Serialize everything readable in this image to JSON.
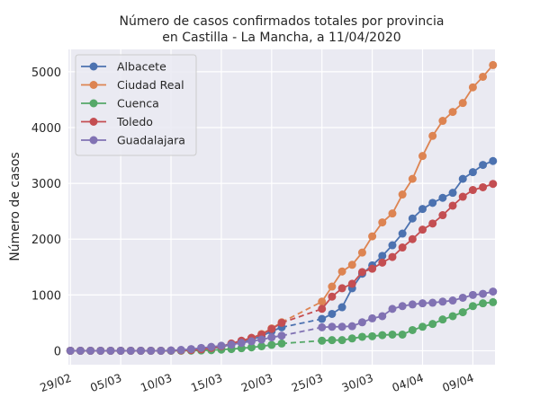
{
  "chart_data": {
    "type": "line",
    "title": "Número de casos confirmados totales por provincia\nen Castilla - La Mancha, a 11/04/2020",
    "xlabel": "",
    "ylabel": "Número de casos",
    "ylim": [
      -250,
      5400
    ],
    "yticks": [
      0,
      1000,
      2000,
      3000,
      4000,
      5000
    ],
    "xticks": [
      "29/02",
      "05/03",
      "10/03",
      "15/03",
      "20/03",
      "25/03",
      "30/03",
      "04/04",
      "09/04"
    ],
    "grid": true,
    "legend": "top-left",
    "x": [
      "29/02",
      "01/03",
      "02/03",
      "03/03",
      "04/03",
      "05/03",
      "06/03",
      "07/03",
      "08/03",
      "09/03",
      "10/03",
      "11/03",
      "12/03",
      "13/03",
      "14/03",
      "15/03",
      "16/03",
      "17/03",
      "18/03",
      "19/03",
      "20/03",
      "21/03",
      "25/03",
      "26/03",
      "27/03",
      "28/03",
      "29/03",
      "30/03",
      "31/03",
      "01/04",
      "02/04",
      "03/04",
      "04/04",
      "05/04",
      "06/04",
      "07/04",
      "08/04",
      "09/04",
      "10/04",
      "11/04"
    ],
    "series": [
      {
        "name": "Albacete",
        "color": "#4c72b0",
        "values": [
          0,
          0,
          0,
          0,
          0,
          0,
          0,
          0,
          0,
          0,
          3,
          5,
          10,
          20,
          40,
          70,
          110,
          150,
          200,
          260,
          350,
          420,
          570,
          660,
          780,
          1120,
          1380,
          1530,
          1700,
          1890,
          2100,
          2370,
          2540,
          2650,
          2740,
          2830,
          3080,
          3200,
          3330,
          3400
        ]
      },
      {
        "name": "Ciudad Real",
        "color": "#dd8452",
        "values": [
          0,
          0,
          0,
          0,
          0,
          0,
          0,
          0,
          0,
          0,
          2,
          5,
          10,
          25,
          45,
          80,
          120,
          170,
          230,
          300,
          400,
          510,
          880,
          1150,
          1420,
          1540,
          1760,
          2050,
          2300,
          2460,
          2800,
          3080,
          3490,
          3850,
          4120,
          4280,
          4440,
          4720,
          4910,
          5120
        ]
      },
      {
        "name": "Cuenca",
        "color": "#55a868",
        "values": [
          0,
          0,
          0,
          0,
          0,
          0,
          0,
          0,
          0,
          0,
          0,
          1,
          2,
          5,
          10,
          20,
          30,
          45,
          60,
          80,
          105,
          130,
          180,
          190,
          190,
          220,
          250,
          260,
          280,
          290,
          290,
          370,
          430,
          480,
          560,
          620,
          690,
          800,
          850,
          870
        ]
      },
      {
        "name": "Toledo",
        "color": "#c44e52",
        "values": [
          0,
          0,
          0,
          0,
          0,
          0,
          0,
          0,
          0,
          0,
          3,
          6,
          12,
          25,
          50,
          80,
          130,
          180,
          230,
          290,
          390,
          500,
          750,
          970,
          1120,
          1200,
          1410,
          1470,
          1580,
          1680,
          1850,
          2000,
          2170,
          2280,
          2430,
          2600,
          2760,
          2880,
          2930,
          2990
        ]
      },
      {
        "name": "Guadalajara",
        "color": "#8172b3",
        "values": [
          0,
          0,
          0,
          0,
          0,
          0,
          0,
          0,
          0,
          0,
          5,
          15,
          30,
          50,
          70,
          90,
          110,
          140,
          170,
          200,
          240,
          270,
          420,
          430,
          430,
          440,
          510,
          580,
          620,
          750,
          800,
          830,
          850,
          860,
          880,
          900,
          950,
          1000,
          1020,
          1060
        ]
      }
    ],
    "background": "#eaeaf2"
  }
}
